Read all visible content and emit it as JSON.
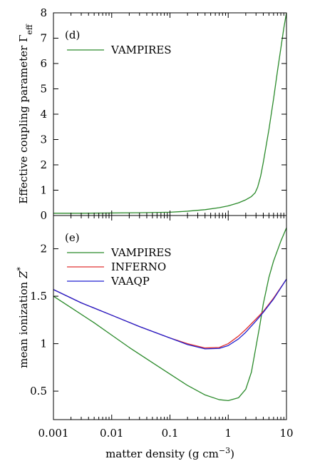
{
  "chart_data": [
    {
      "type": "line",
      "panel_label": "(d)",
      "ylabel": "Effective coupling parameter Γ",
      "ylabel_sub": "eff",
      "xlabel": "",
      "xscale": "log",
      "xlim": [
        0.001,
        10
      ],
      "ylim": [
        0,
        8
      ],
      "yticks": [
        0,
        1,
        2,
        3,
        4,
        5,
        6,
        7,
        8
      ],
      "legend_position": "top-left",
      "series": [
        {
          "name": "VAMPIRES",
          "color": "#2a8a2a",
          "x": [
            0.001,
            0.003,
            0.01,
            0.03,
            0.1,
            0.2,
            0.4,
            0.7,
            1.0,
            1.5,
            2.0,
            2.5,
            2.9,
            3.2,
            3.6,
            4.0,
            5.0,
            6.0,
            7.0,
            8.0,
            9.0,
            10.0
          ],
          "y": [
            0.09,
            0.09,
            0.1,
            0.11,
            0.13,
            0.17,
            0.23,
            0.31,
            0.38,
            0.5,
            0.62,
            0.75,
            0.9,
            1.12,
            1.55,
            2.1,
            3.4,
            4.6,
            5.7,
            6.6,
            7.4,
            8.0
          ]
        }
      ]
    },
    {
      "type": "line",
      "panel_label": "(e)",
      "ylabel": "mean ionization ",
      "ylabel_italic": "Z",
      "ylabel_sup": "*",
      "xlabel": "matter density (g cm",
      "xlabel_sup": "−3",
      "xlabel_end": ")",
      "xscale": "log",
      "xlim": [
        0.001,
        10
      ],
      "ylim": [
        0.2,
        2.35
      ],
      "yticks": [
        0.5,
        1,
        1.5,
        2
      ],
      "ytick_labels": [
        "0.5",
        "1",
        "1.5",
        "2"
      ],
      "xticks": [
        0.001,
        0.01,
        0.1,
        1,
        10
      ],
      "xtick_labels": [
        "0.001",
        "0.01",
        "0.1",
        "1",
        "10"
      ],
      "legend_position": "top-left",
      "series": [
        {
          "name": "VAMPIRES",
          "color": "#2a8a2a",
          "x": [
            0.001,
            0.002,
            0.005,
            0.01,
            0.02,
            0.05,
            0.1,
            0.2,
            0.4,
            0.7,
            1.0,
            1.5,
            2.0,
            2.5,
            3.0,
            3.5,
            4.0,
            5.0,
            6.0,
            8.0,
            10.0
          ],
          "y": [
            1.5,
            1.38,
            1.22,
            1.09,
            0.96,
            0.8,
            0.68,
            0.56,
            0.46,
            0.41,
            0.4,
            0.43,
            0.52,
            0.7,
            0.97,
            1.2,
            1.42,
            1.7,
            1.87,
            2.08,
            2.22
          ]
        },
        {
          "name": "INFERNO",
          "color": "#e03030",
          "x": [
            0.001,
            0.003,
            0.01,
            0.03,
            0.1,
            0.2,
            0.4,
            0.7,
            1.0,
            1.5,
            2.0,
            3.0,
            4.0,
            6.0,
            10.0
          ],
          "y": [
            1.57,
            1.43,
            1.3,
            1.18,
            1.06,
            1.0,
            0.955,
            0.96,
            1.0,
            1.08,
            1.15,
            1.26,
            1.34,
            1.48,
            1.68
          ]
        },
        {
          "name": "VAAQP",
          "color": "#2020d0",
          "x": [
            0.001,
            0.003,
            0.01,
            0.03,
            0.1,
            0.2,
            0.4,
            0.7,
            1.0,
            1.5,
            2.0,
            3.0,
            4.0,
            6.0,
            10.0
          ],
          "y": [
            1.57,
            1.43,
            1.3,
            1.18,
            1.06,
            0.99,
            0.945,
            0.95,
            0.98,
            1.05,
            1.12,
            1.24,
            1.33,
            1.47,
            1.68
          ]
        }
      ]
    }
  ]
}
